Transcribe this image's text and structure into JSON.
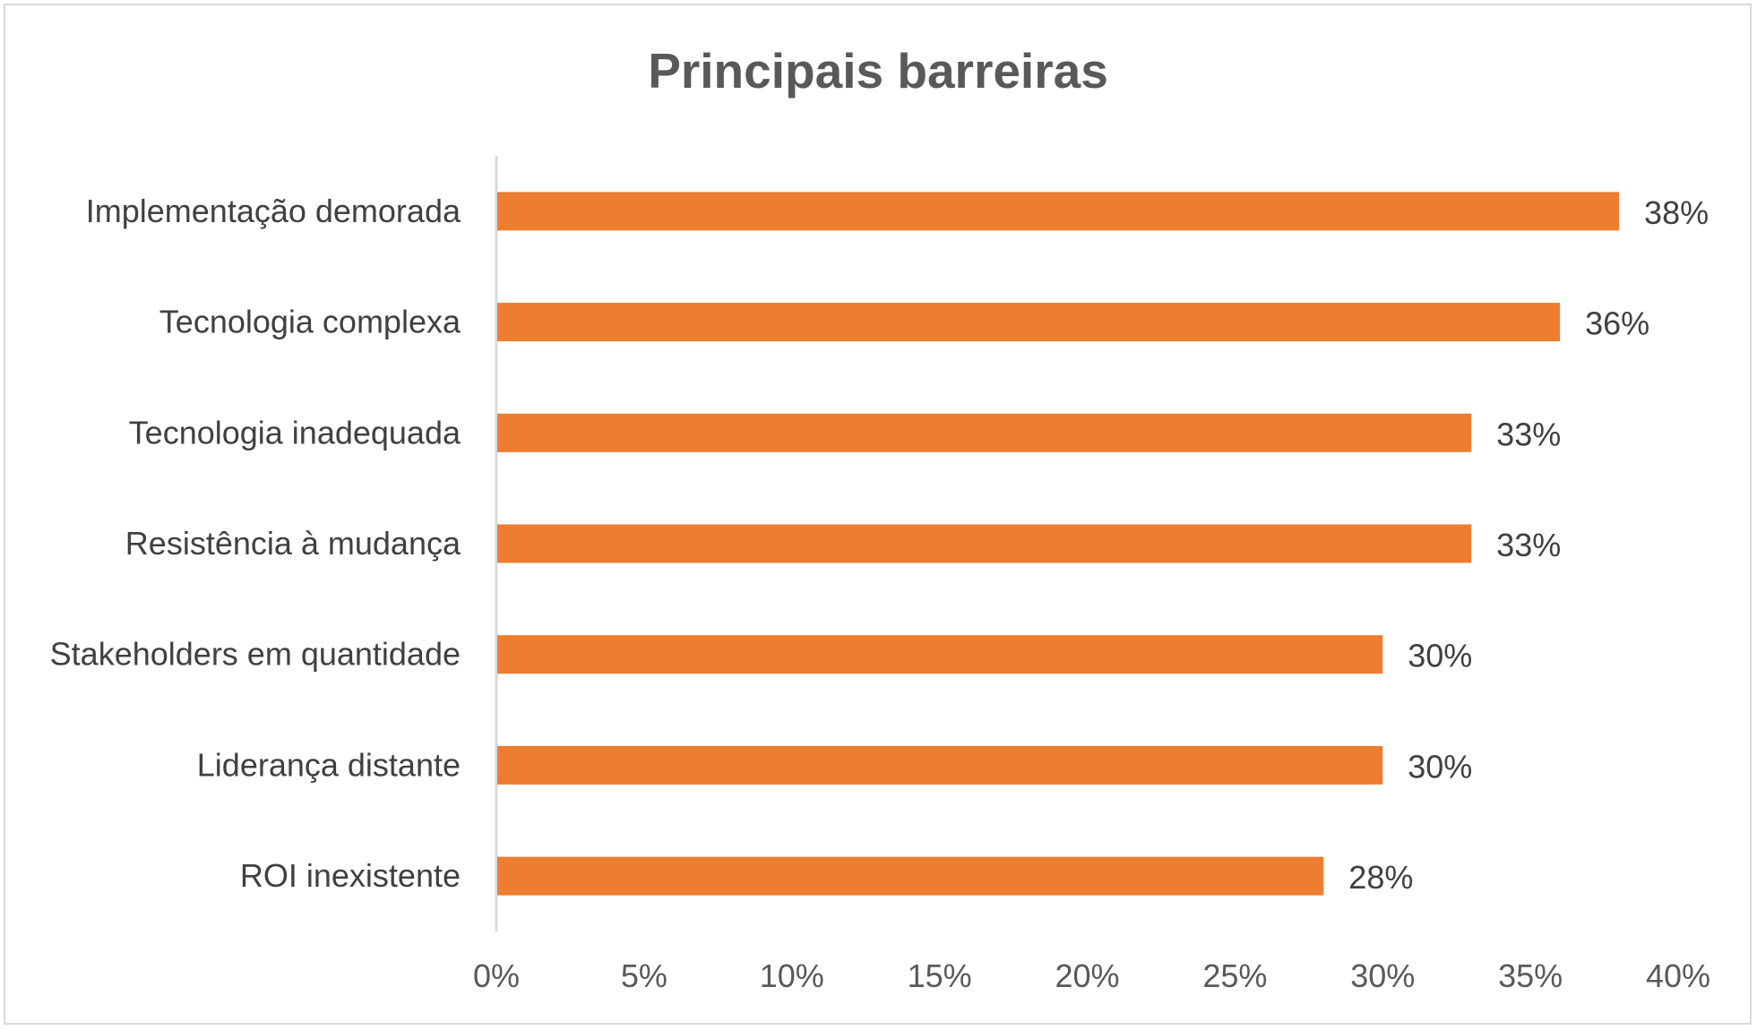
{
  "chart_data": {
    "type": "bar",
    "orientation": "horizontal",
    "title": "Principais barreiras",
    "xlabel": "",
    "ylabel": "",
    "categories": [
      "Implementação demorada",
      "Tecnologia complexa",
      "Tecnologia inadequada",
      "Resistência à mudança",
      "Stakeholders em quantidade",
      "Liderança distante",
      "ROI inexistente"
    ],
    "values": [
      38,
      36,
      33,
      33,
      30,
      30,
      28
    ],
    "data_labels": [
      "38%",
      "36%",
      "33%",
      "33%",
      "30%",
      "30%",
      "28%"
    ],
    "xlim": [
      0,
      40
    ],
    "x_ticks": [
      "0%",
      "5%",
      "10%",
      "15%",
      "20%",
      "25%",
      "30%",
      "35%",
      "40%"
    ],
    "grid": false,
    "legend": "none",
    "bar_color": "#ED7D31",
    "axis_color": "#D9D9D9"
  }
}
